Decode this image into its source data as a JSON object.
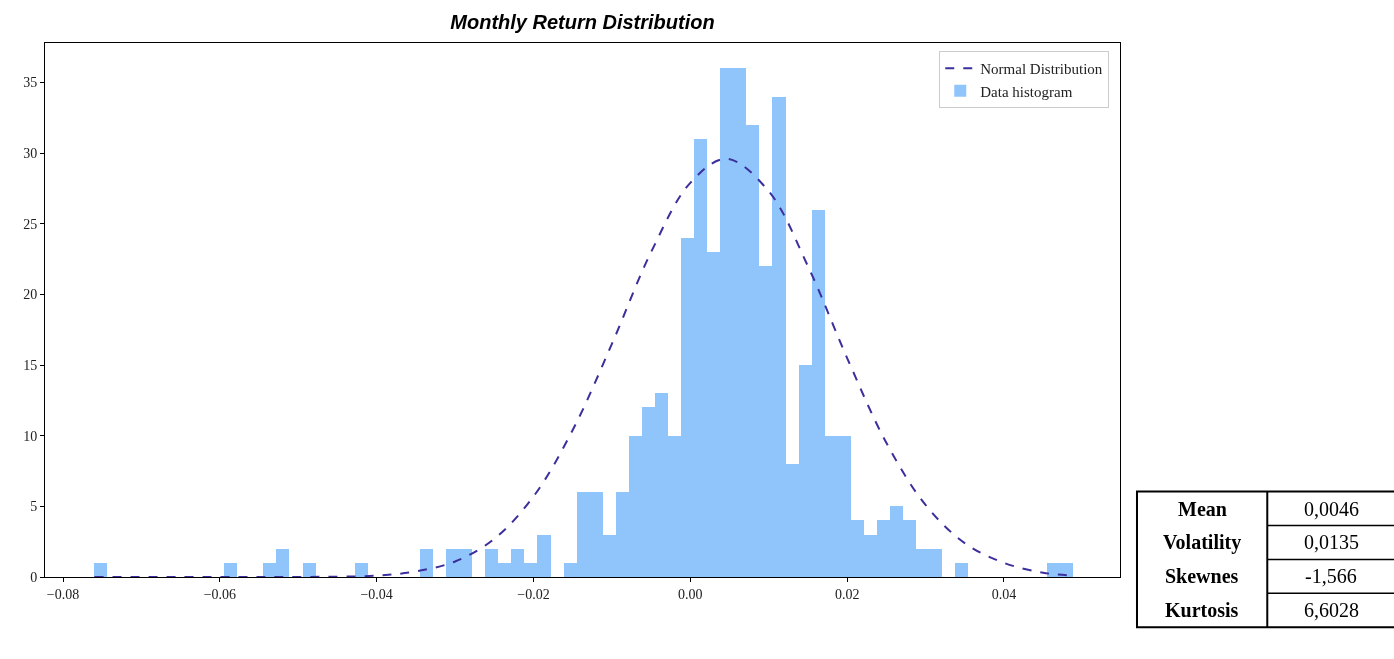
{
  "chart_data": {
    "type": "histogram",
    "title": "Monthly Return Distribution",
    "series": [
      {
        "name": "Data histogram",
        "type": "histogram",
        "color": "#90c5fc",
        "bins": [
          -0.0761,
          -0.07444,
          -0.07277,
          -0.07111,
          -0.06944,
          -0.06778,
          -0.06611,
          -0.06445,
          -0.06278,
          -0.06112,
          -0.05945,
          -0.05779,
          -0.05612,
          -0.05446,
          -0.05279,
          -0.05113,
          -0.04946,
          -0.0478,
          -0.04613,
          -0.04447,
          -0.0428,
          -0.04114,
          -0.03947,
          -0.03781,
          -0.03614,
          -0.03448,
          -0.03281,
          -0.03115,
          -0.02948,
          -0.02782,
          -0.02615,
          -0.02449,
          -0.02282,
          -0.02116,
          -0.01949,
          -0.01783,
          -0.01616,
          -0.0145,
          -0.01283,
          -0.01117,
          -0.0095,
          -0.00784,
          -0.00617,
          -0.00451,
          -0.00284,
          -0.00118,
          0.00049,
          0.00216,
          0.00382,
          0.00549,
          0.00715,
          0.00882,
          0.01048,
          0.01215,
          0.01381,
          0.01548,
          0.01714,
          0.01881,
          0.02047,
          0.02214,
          0.0238,
          0.02547,
          0.02713,
          0.0288,
          0.03046,
          0.03213,
          0.03379,
          0.03546,
          0.03712,
          0.03879,
          0.04045,
          0.04212,
          0.04378,
          0.04545,
          0.04711,
          0.04878
        ],
        "values": [
          1,
          0,
          0,
          0,
          0,
          0,
          0,
          0,
          0,
          0,
          1,
          0,
          0,
          1,
          2,
          0,
          1,
          0,
          0,
          0,
          1,
          0,
          0,
          0,
          0,
          2,
          0,
          2,
          2,
          0,
          2,
          1,
          2,
          1,
          3,
          0,
          1,
          6,
          6,
          3,
          6,
          10,
          12,
          13,
          10,
          24,
          31,
          23,
          36,
          36,
          32,
          22,
          34,
          8,
          15,
          26,
          10,
          10,
          4,
          3,
          4,
          5,
          4,
          2,
          2,
          0,
          1,
          0,
          0,
          0,
          0,
          0,
          0,
          1,
          1
        ]
      },
      {
        "name": "Normal Distribution",
        "type": "line",
        "color": "#3a2f9c",
        "line_style": "dashed",
        "x": [
          -0.076,
          -0.06,
          -0.05,
          -0.04,
          -0.035,
          -0.03,
          -0.025,
          -0.02,
          -0.015,
          -0.01,
          -0.005,
          0,
          0.0046,
          0.01,
          0.015,
          0.02,
          0.025,
          0.03,
          0.035,
          0.04,
          0.045,
          0.0488
        ],
        "values": [
          0,
          0,
          0,
          0.1,
          0.4,
          1.1,
          2.7,
          5.7,
          10.4,
          16.5,
          23.0,
          27.9,
          29.6,
          27.3,
          22.0,
          15.5,
          9.5,
          5.1,
          2.4,
          1.0,
          0.3,
          0.1
        ]
      }
    ],
    "xlim": [
      -0.0823,
      0.0548
    ],
    "ylim": [
      0,
      37.8
    ],
    "xticks": [
      {
        "value": -0.08,
        "label": "−0.08"
      },
      {
        "value": -0.06,
        "label": "−0.06"
      },
      {
        "value": -0.04,
        "label": "−0.04"
      },
      {
        "value": -0.02,
        "label": "−0.02"
      },
      {
        "value": 0,
        "label": "0.00"
      },
      {
        "value": 0.02,
        "label": "0.02"
      },
      {
        "value": 0.04,
        "label": "0.04"
      }
    ],
    "yticks": [
      0,
      5,
      10,
      15,
      20,
      25,
      30,
      35
    ],
    "legend": "top right",
    "annotations": [
      "Mean",
      "0,0046",
      "Volatility",
      "0,0135",
      "Skewnes",
      "-1,566",
      "Kurtosis",
      "6,6028"
    ]
  }
}
